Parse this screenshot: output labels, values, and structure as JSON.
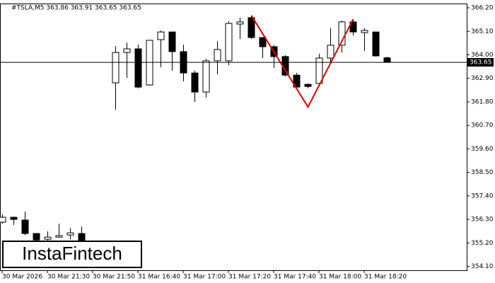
{
  "chart_data": {
    "type": "candlestick",
    "title": "#TSLA,M5  363.86 363.91 363.65 363.65",
    "logo": "InstaFintech",
    "categories": [
      "30 Mar 2026",
      null,
      null,
      null,
      "30 Mar 21:30",
      null,
      null,
      null,
      "30 Mar 21:50",
      null,
      null,
      null,
      "31 Mar 16:40",
      null,
      null,
      null,
      "31 Mar 17:00",
      null,
      null,
      null,
      "31 Mar 17:20",
      null,
      null,
      null,
      "31 Mar 17:40",
      null,
      null,
      null,
      "31 Mar 18:00",
      null,
      null,
      null,
      "31 Mar 18:20",
      null,
      null
    ],
    "open": [
      356.17,
      356.4,
      356.27,
      355.64,
      355.37,
      355.47,
      355.57,
      355.64,
      null,
      null,
      362.69,
      364.11,
      364.28,
      362.59,
      364.71,
      365.07,
      364.15,
      363.15,
      362.26,
      363.72,
      363.72,
      365.44,
      365.74,
      364.81,
      364.38,
      363.92,
      363.05,
      362.62,
      362.66,
      363.85,
      364.45,
      365.54,
      365.04,
      365.07,
      363.86
    ],
    "high": [
      356.53,
      356.43,
      356.66,
      355.66,
      355.74,
      356.1,
      355.9,
      355.97,
      null,
      null,
      364.41,
      364.58,
      364.48,
      364.68,
      365.14,
      365.07,
      364.48,
      363.25,
      363.82,
      364.64,
      365.57,
      365.74,
      365.84,
      364.81,
      364.45,
      363.98,
      363.15,
      362.66,
      364.05,
      365.24,
      365.6,
      365.64,
      365.24,
      365.07,
      363.91
    ],
    "low": [
      356.1,
      356.03,
      355.57,
      355.3,
      355.31,
      355.44,
      355.37,
      355.1,
      null,
      null,
      361.43,
      362.92,
      362.43,
      362.56,
      363.42,
      363.25,
      362.76,
      361.8,
      361.99,
      363.09,
      363.52,
      364.74,
      364.74,
      363.85,
      363.39,
      362.99,
      362.43,
      362.43,
      362.52,
      363.65,
      364.11,
      364.91,
      364.18,
      363.92,
      363.65
    ],
    "close": [
      356.4,
      356.3,
      355.64,
      355.34,
      355.47,
      355.54,
      355.67,
      355.14,
      null,
      null,
      364.11,
      364.28,
      362.49,
      364.68,
      365.07,
      364.15,
      363.15,
      362.26,
      363.72,
      364.25,
      365.47,
      365.54,
      364.81,
      364.38,
      363.92,
      363.05,
      362.49,
      362.52,
      363.85,
      364.45,
      365.54,
      365.07,
      365.14,
      363.95,
      363.65
    ],
    "up_color": "#ffffff",
    "down_color": "#000000",
    "outline_color": "#000000",
    "current_price": {
      "value": 363.65,
      "label": "363.65"
    },
    "pattern": {
      "color": "#e00000",
      "index": [
        22,
        27,
        31
      ],
      "price": [
        365.84,
        361.56,
        365.67
      ]
    },
    "ylim": [
      353.92,
      366.4
    ],
    "yticks": [
      {
        "value": 354.1,
        "label": "354.10"
      },
      {
        "value": 355.2,
        "label": "355.20"
      },
      {
        "value": 356.3,
        "label": "356.30"
      },
      {
        "value": 357.4,
        "label": "357.40"
      },
      {
        "value": 358.5,
        "label": "358.50"
      },
      {
        "value": 359.6,
        "label": "359.60"
      },
      {
        "value": 360.7,
        "label": "360.70"
      },
      {
        "value": 361.8,
        "label": "361.80"
      },
      {
        "value": 362.9,
        "label": "362.90"
      },
      {
        "value": 364.0,
        "label": "364.00"
      },
      {
        "value": 365.1,
        "label": "365.10"
      },
      {
        "value": 366.2,
        "label": "366.20"
      }
    ]
  }
}
